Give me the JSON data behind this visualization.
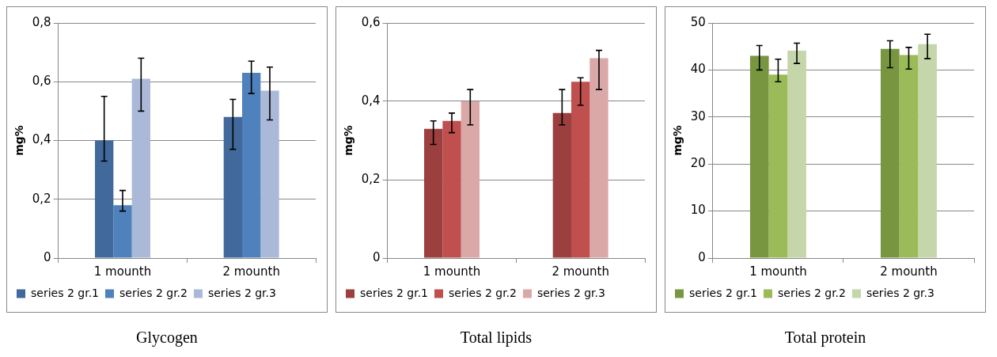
{
  "chart_data": [
    {
      "type": "bar",
      "title": "Glycogen",
      "ylabel": "mg%",
      "categories": [
        "1 mounth",
        "2 mounth"
      ],
      "ylim": [
        0,
        0.8
      ],
      "yticks": [
        0,
        {
          "value": 0.2,
          "label": "0,2"
        },
        {
          "value": 0.4,
          "label": "0,4"
        },
        {
          "value": 0.6,
          "label": "0,6"
        },
        {
          "value": 0.8,
          "label": "0,8"
        }
      ],
      "grid": "y",
      "legend": "bottom",
      "series": [
        {
          "name": "series 2 gr.1",
          "color": "#41699b",
          "values": [
            0.4,
            0.48
          ],
          "errors": [
            [
              0.33,
              0.55
            ],
            [
              0.37,
              0.54
            ]
          ]
        },
        {
          "name": "series 2 gr.2",
          "color": "#4f81bd",
          "values": [
            0.18,
            0.63
          ],
          "errors": [
            [
              0.16,
              0.23
            ],
            [
              0.56,
              0.67
            ]
          ]
        },
        {
          "name": "series 2 gr.3",
          "color": "#aab9d8",
          "values": [
            0.61,
            0.57
          ],
          "errors": [
            [
              0.5,
              0.68
            ],
            [
              0.47,
              0.65
            ]
          ]
        }
      ]
    },
    {
      "type": "bar",
      "title": "Total lipids",
      "ylabel": "mg%",
      "categories": [
        "1 mounth",
        "2 mounth"
      ],
      "ylim": [
        0,
        0.6
      ],
      "yticks": [
        0,
        {
          "value": 0.2,
          "label": "0,2"
        },
        {
          "value": 0.4,
          "label": "0,4"
        },
        {
          "value": 0.6,
          "label": "0,6"
        }
      ],
      "grid": "y",
      "legend": "bottom",
      "series": [
        {
          "name": "series 2 gr.1",
          "color": "#9b3f3f",
          "values": [
            0.33,
            0.37
          ],
          "errors": [
            [
              0.29,
              0.35
            ],
            [
              0.34,
              0.43
            ]
          ]
        },
        {
          "name": "series 2 gr.2",
          "color": "#c0504d",
          "values": [
            0.35,
            0.45
          ],
          "errors": [
            [
              0.32,
              0.37
            ],
            [
              0.39,
              0.46
            ]
          ]
        },
        {
          "name": "series 2 gr.3",
          "color": "#dba8a8",
          "values": [
            0.4,
            0.51
          ],
          "errors": [
            [
              0.34,
              0.43
            ],
            [
              0.43,
              0.53
            ]
          ]
        }
      ]
    },
    {
      "type": "bar",
      "title": "Total protein",
      "ylabel": "mg%",
      "categories": [
        "1 mounth",
        "2 mounth"
      ],
      "ylim": [
        0,
        50
      ],
      "yticks": [
        0,
        10,
        20,
        30,
        40,
        50
      ],
      "grid": "y",
      "legend": "bottom",
      "series": [
        {
          "name": "series 2 gr.1",
          "color": "#77963f",
          "values": [
            43,
            44.5
          ],
          "errors": [
            [
              40,
              45.2
            ],
            [
              40.5,
              46.2
            ]
          ]
        },
        {
          "name": "series 2 gr.2",
          "color": "#9bbb59",
          "values": [
            39,
            43.2
          ],
          "errors": [
            [
              37.5,
              42.3
            ],
            [
              40.2,
              44.8
            ]
          ]
        },
        {
          "name": "series 2 gr.3",
          "color": "#c4d6aa",
          "values": [
            44.1,
            45.5
          ],
          "errors": [
            [
              41.4,
              45.7
            ],
            [
              42.4,
              47.6
            ]
          ]
        }
      ]
    }
  ]
}
